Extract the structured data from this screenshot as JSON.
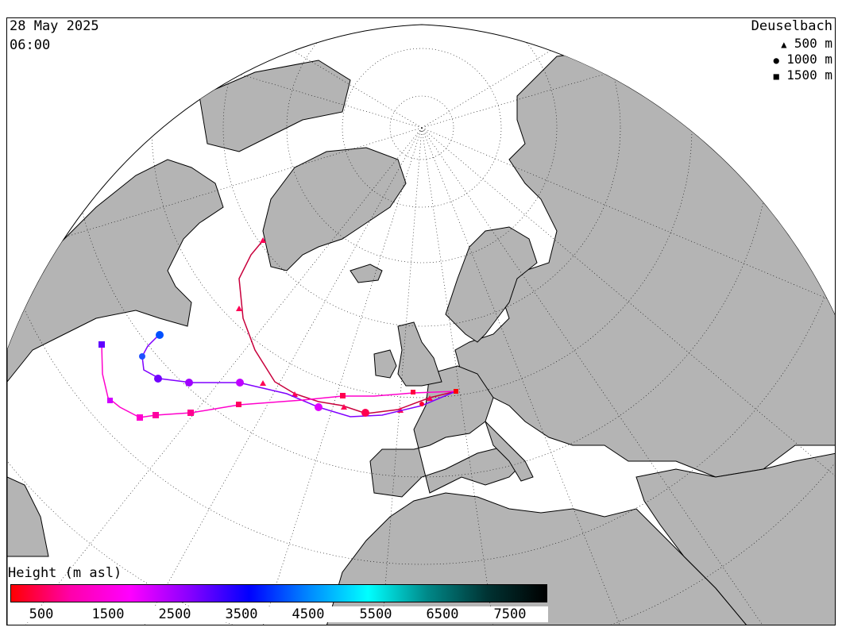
{
  "header": {
    "date": "28 May 2025",
    "time": "06:00"
  },
  "legend": {
    "station": "Deuselbach",
    "items": [
      {
        "symbol": "triangle",
        "label": "500 m"
      },
      {
        "symbol": "circle",
        "label": "1000 m"
      },
      {
        "symbol": "square",
        "label": "1500 m"
      }
    ]
  },
  "height_scale": {
    "title": "Height (m asl)",
    "ticks": [
      "500",
      "1500",
      "2500",
      "3500",
      "4500",
      "5500",
      "6500",
      "7500"
    ],
    "colors": [
      "#ff0000",
      "#ff00aa",
      "#ff00ff",
      "#8800ff",
      "#0000ff",
      "#0088ff",
      "#00ffff",
      "#008888",
      "#003333",
      "#000000"
    ]
  },
  "colors": {
    "land": "#b4b4b4",
    "sea": "#ffffff",
    "graticule": "#000000"
  }
}
